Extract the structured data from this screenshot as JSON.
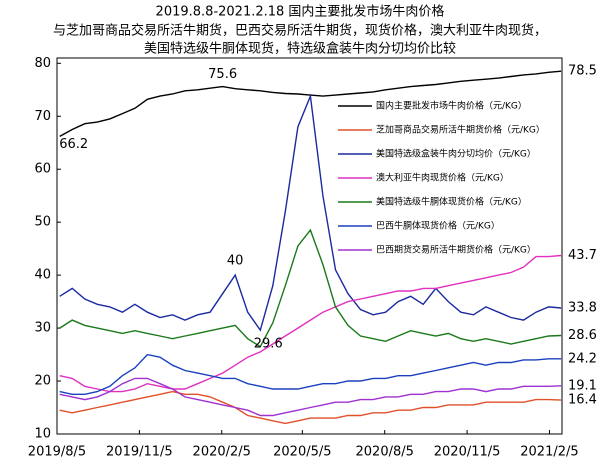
{
  "chart_data": {
    "type": "line",
    "title": [
      "2019.8.8-2021.2.18 国内主要批发市场牛肉价格",
      "与芝加哥商品交易所活牛期货，巴西交易所活牛期货，现货价格，澳大利亚牛肉现货，",
      "美国特选级牛胴体现货，特选级盒装牛肉分切均价比较"
    ],
    "x": [
      "2019/8/8",
      "2019/8/22",
      "2019/9/5",
      "2019/9/19",
      "2019/10/3",
      "2019/10/17",
      "2019/10/31",
      "2019/11/14",
      "2019/11/28",
      "2019/12/12",
      "2019/12/26",
      "2020/1/9",
      "2020/1/23",
      "2020/2/6",
      "2020/2/20",
      "2020/3/5",
      "2020/3/19",
      "2020/4/2",
      "2020/4/16",
      "2020/4/30",
      "2020/5/14",
      "2020/5/28",
      "2020/6/11",
      "2020/6/25",
      "2020/7/9",
      "2020/7/23",
      "2020/8/6",
      "2020/8/20",
      "2020/9/3",
      "2020/9/17",
      "2020/10/1",
      "2020/10/15",
      "2020/10/29",
      "2020/11/12",
      "2020/11/26",
      "2020/12/10",
      "2020/12/24",
      "2021/1/7",
      "2021/1/21",
      "2021/2/4",
      "2021/2/18"
    ],
    "xlim": [
      "2019/8/5",
      "2021/2/19"
    ],
    "xticks": [
      "2019/8/5",
      "2019/11/5",
      "2020/2/5",
      "2020/5/5",
      "2020/8/5",
      "2020/11/5",
      "2021/2/5"
    ],
    "ylim": [
      10,
      81
    ],
    "yticks": [
      10,
      20,
      30,
      40,
      50,
      60,
      70,
      80
    ],
    "grid": false,
    "series": [
      {
        "name": "国内主要批发市场牛肉价格（元/KG）",
        "color": "#000000",
        "values": [
          66.2,
          67.5,
          68.6,
          68.9,
          69.5,
          70.5,
          71.5,
          73.2,
          73.8,
          74.2,
          74.8,
          75.0,
          75.3,
          75.6,
          75.2,
          75.0,
          74.8,
          74.5,
          74.3,
          74.2,
          74.0,
          73.8,
          74.0,
          74.2,
          74.4,
          74.6,
          75.0,
          75.3,
          75.6,
          75.8,
          76.0,
          76.3,
          76.6,
          76.8,
          77.0,
          77.2,
          77.5,
          77.8,
          78.0,
          78.3,
          78.5
        ]
      },
      {
        "name": "芝加哥商品交易所活牛期货价格（元/KG）",
        "color": "#e0502a",
        "values": [
          14.5,
          14.0,
          14.5,
          15.0,
          15.5,
          16.0,
          16.5,
          17.0,
          17.5,
          18.0,
          17.5,
          17.5,
          17.0,
          16.0,
          15.0,
          13.5,
          13.0,
          12.5,
          12.0,
          12.5,
          13.0,
          13.0,
          13.0,
          13.5,
          13.5,
          14.0,
          14.0,
          14.5,
          14.5,
          15.0,
          15.0,
          15.5,
          15.5,
          15.5,
          16.0,
          16.0,
          16.0,
          16.0,
          16.5,
          16.5,
          16.4
        ]
      },
      {
        "name": "美国特选级盒装牛肉分切均价（元/KG）",
        "color": "#1a2aa0",
        "values": [
          36.0,
          37.5,
          35.5,
          34.5,
          34.0,
          33.0,
          34.5,
          33.0,
          32.0,
          32.5,
          31.5,
          32.5,
          33.0,
          36.5,
          40,
          33.0,
          29.6,
          38.0,
          52.0,
          68.0,
          73.8,
          55.0,
          41.0,
          36.5,
          33.5,
          32.5,
          33.0,
          35.0,
          36.0,
          34.5,
          37.5,
          35.0,
          33.0,
          32.5,
          34.0,
          33.0,
          32.0,
          31.5,
          33.0,
          34.0,
          33.8
        ]
      },
      {
        "name": "澳大利亚牛肉现货价格（元/KG）",
        "color": "#e030c0",
        "values": [
          21.0,
          20.5,
          19.0,
          18.5,
          18.0,
          18.0,
          18.5,
          19.5,
          19.0,
          18.5,
          18.5,
          19.5,
          20.5,
          21.5,
          23.0,
          24.5,
          25.5,
          27.0,
          28.5,
          30.0,
          31.5,
          33.0,
          34.0,
          35.0,
          35.5,
          36.0,
          36.5,
          37.0,
          37.0,
          37.5,
          37.5,
          38.0,
          38.5,
          39.0,
          39.5,
          40.0,
          40.5,
          41.5,
          43.5,
          43.5,
          43.7
        ]
      },
      {
        "name": "美国特选级牛胴体现货价格（元/KG）",
        "color": "#1a7a1a",
        "values": [
          30.0,
          31.5,
          30.5,
          30.0,
          29.5,
          29.0,
          29.5,
          29.0,
          28.5,
          28.0,
          28.5,
          29.0,
          29.5,
          30.0,
          30.5,
          28.0,
          26.5,
          31.0,
          38.0,
          45.5,
          48.5,
          42.0,
          34.0,
          30.5,
          28.5,
          28.0,
          27.5,
          28.5,
          29.5,
          29.0,
          28.5,
          29.0,
          28.0,
          27.5,
          28.0,
          27.5,
          27.0,
          27.5,
          28.0,
          28.5,
          28.6
        ]
      },
      {
        "name": "巴西牛胴体现货价格（元/KG）",
        "color": "#1a40c0",
        "values": [
          18.0,
          17.5,
          17.5,
          18.0,
          19.0,
          21.0,
          22.5,
          25.0,
          24.5,
          23.0,
          22.0,
          21.5,
          21.0,
          20.5,
          20.5,
          19.5,
          19.0,
          18.5,
          18.5,
          18.5,
          19.0,
          19.5,
          19.5,
          20.0,
          20.0,
          20.5,
          20.5,
          21.0,
          21.0,
          21.5,
          22.0,
          22.5,
          23.0,
          23.5,
          23.0,
          23.5,
          23.5,
          24.0,
          24.0,
          24.2,
          24.2
        ]
      },
      {
        "name": "巴西期货交易所活牛期货价格（元/KG）",
        "color": "#a030d0",
        "values": [
          17.5,
          17.0,
          16.5,
          17.0,
          18.0,
          19.5,
          20.5,
          20.5,
          19.5,
          18.5,
          17.0,
          16.5,
          16.0,
          15.5,
          15.0,
          14.5,
          13.5,
          13.5,
          14.0,
          14.5,
          15.0,
          15.5,
          16.0,
          16.0,
          16.5,
          16.5,
          17.0,
          17.0,
          17.5,
          17.5,
          18.0,
          18.0,
          18.5,
          18.5,
          18.0,
          18.5,
          18.5,
          19.0,
          19.0,
          19.0,
          19.1
        ]
      }
    ]
  }
}
